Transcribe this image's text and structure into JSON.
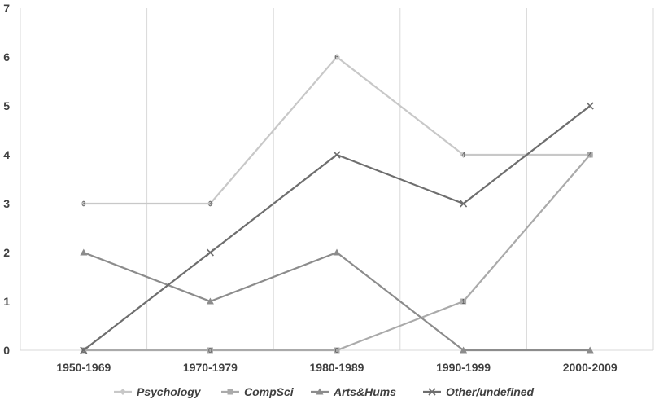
{
  "chart_data": {
    "type": "line",
    "categories": [
      "1950-1969",
      "1970-1979",
      "1980-1989",
      "1990-1999",
      "2000-2009"
    ],
    "ylim": [
      0,
      7
    ],
    "yticks": [
      0,
      1,
      2,
      3,
      4,
      5,
      6,
      7
    ],
    "grid": "vertical",
    "legend_position": "bottom",
    "series": [
      {
        "name": "Psychology",
        "values": [
          3,
          3,
          6,
          4,
          4
        ],
        "color": "#c8c8c8",
        "marker": "diamond",
        "labels": [
          "3",
          "3",
          "6",
          "4",
          "4"
        ]
      },
      {
        "name": "CompSci",
        "values": [
          0,
          0,
          0,
          1,
          4
        ],
        "color": "#aaaaaa",
        "marker": "square",
        "labels": [
          "0",
          "0",
          "0",
          "1",
          "4"
        ]
      },
      {
        "name": "Arts&Hums",
        "values": [
          2,
          1,
          2,
          0,
          0
        ],
        "color": "#8c8c8c",
        "marker": "triangle",
        "labels": [
          "",
          "",
          "",
          "",
          ""
        ]
      },
      {
        "name": "Other/undefined",
        "values": [
          0,
          2,
          4,
          3,
          5
        ],
        "color": "#6e6e6e",
        "marker": "x",
        "labels": [
          "",
          "",
          "",
          "",
          ""
        ]
      }
    ]
  }
}
